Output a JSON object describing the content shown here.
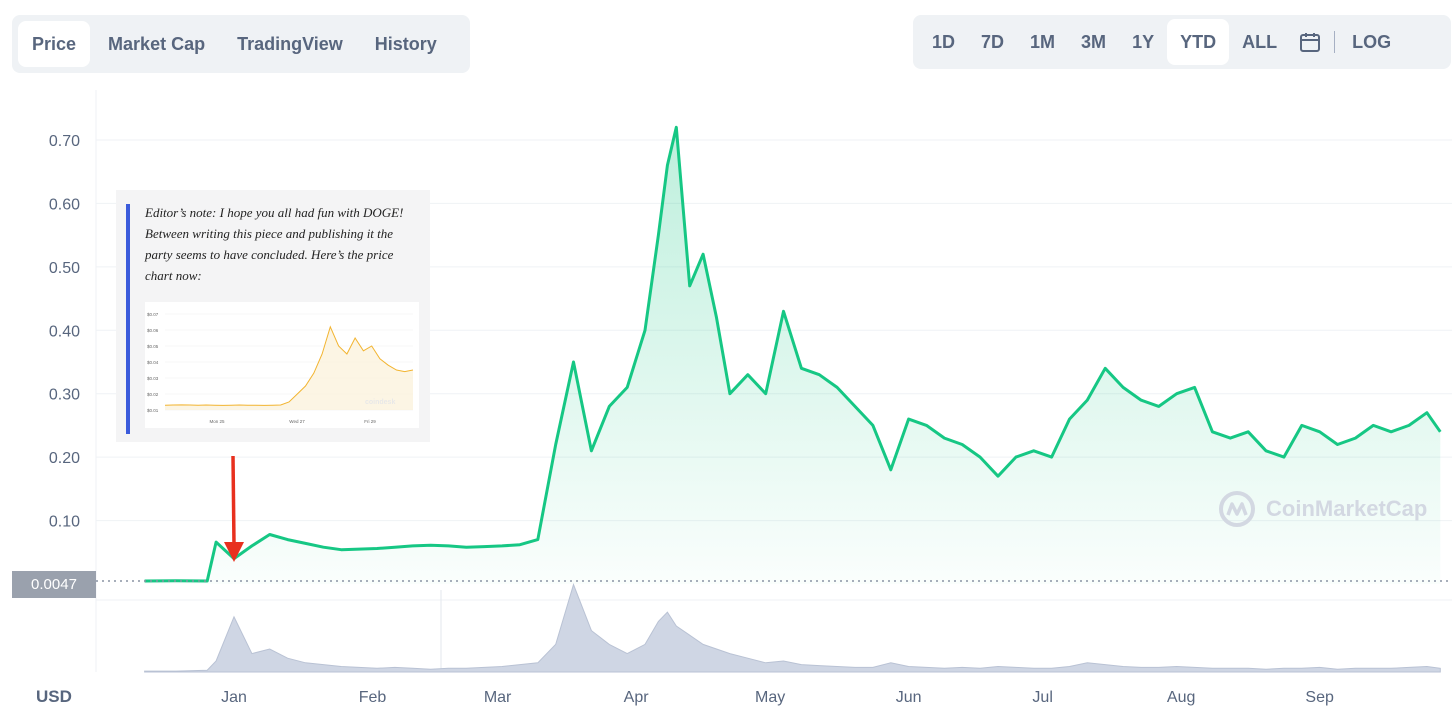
{
  "tabs": [
    {
      "label": "Price",
      "active": true
    },
    {
      "label": "Market Cap",
      "active": false
    },
    {
      "label": "TradingView",
      "active": false
    },
    {
      "label": "History",
      "active": false
    }
  ],
  "ranges": {
    "items": [
      {
        "label": "1D",
        "active": false
      },
      {
        "label": "7D",
        "active": false
      },
      {
        "label": "1M",
        "active": false
      },
      {
        "label": "3M",
        "active": false
      },
      {
        "label": "1Y",
        "active": false
      },
      {
        "label": "YTD",
        "active": true
      },
      {
        "label": "ALL",
        "active": false
      }
    ],
    "calendar_icon": "calendar-icon",
    "log_label": "LOG"
  },
  "note": {
    "text": "Editor’s note: I hope you all had fun with DOGE! Between writing this piece and publishing it the party seems to have concluded. Here’s the price chart now:",
    "inset": {
      "yticks": [
        "$0.07",
        "$0.06",
        "$0.05",
        "$0.04",
        "$0.03",
        "$0.02",
        "$0.01"
      ],
      "xticks": [
        "Mon 25",
        "Wed 27",
        "Fri 29"
      ],
      "watermark": "coindesk",
      "values": [
        0.013,
        0.0131,
        0.0132,
        0.0131,
        0.013,
        0.0131,
        0.013,
        0.0129,
        0.013,
        0.0131,
        0.013,
        0.013,
        0.0129,
        0.013,
        0.0131,
        0.015,
        0.02,
        0.025,
        0.033,
        0.045,
        0.062,
        0.05,
        0.045,
        0.055,
        0.047,
        0.05,
        0.042,
        0.038,
        0.035,
        0.034,
        0.035
      ]
    }
  },
  "price_badge": "0.0047",
  "watermark": "CoinMarketCap",
  "colors": {
    "line": "#16c784",
    "volume": "#cfd6e4",
    "grid": "#eff2f5",
    "arrow": "#e8301e",
    "inset_line": "#f2b430"
  },
  "chart_data": {
    "type": "line",
    "title": "",
    "xlabel": "",
    "ylabel": "USD",
    "yticks": [
      "0.70",
      "0.60",
      "0.50",
      "0.40",
      "0.30",
      "0.20",
      "0.10"
    ],
    "xticks": [
      "Jan",
      "Feb",
      "Mar",
      "Apr",
      "May",
      "Jun",
      "Jul",
      "Aug",
      "Sep"
    ],
    "ylim": [
      0,
      0.75
    ],
    "grid": true,
    "x": [
      "Dec 12",
      "Dec 19",
      "Dec 26",
      "Dec 28",
      "Jan 1",
      "Jan 5",
      "Jan 9",
      "Jan 13",
      "Jan 17",
      "Jan 21",
      "Jan 25",
      "Jan 29",
      "Feb 2",
      "Feb 6",
      "Feb 10",
      "Feb 14",
      "Feb 18",
      "Feb 22",
      "Feb 26",
      "Mar 2",
      "Mar 6",
      "Mar 10",
      "Mar 14",
      "Mar 18",
      "Mar 22",
      "Mar 26",
      "Mar 30",
      "Apr 3",
      "Apr 6",
      "Apr 8",
      "Apr 10",
      "Apr 13",
      "Apr 16",
      "Apr 19",
      "Apr 22",
      "Apr 26",
      "Apr 30",
      "May 4",
      "May 8",
      "May 12",
      "May 16",
      "May 20",
      "May 24",
      "May 28",
      "Jun 1",
      "Jun 5",
      "Jun 9",
      "Jun 13",
      "Jun 17",
      "Jun 21",
      "Jun 25",
      "Jun 29",
      "Jul 3",
      "Jul 7",
      "Jul 11",
      "Jul 15",
      "Jul 19",
      "Jul 23",
      "Jul 27",
      "Jul 31",
      "Aug 4",
      "Aug 8",
      "Aug 12",
      "Aug 16",
      "Aug 20",
      "Aug 24",
      "Aug 28",
      "Sep 1",
      "Sep 5",
      "Sep 9",
      "Sep 13",
      "Sep 17",
      "Sep 21",
      "Sep 25",
      "Sep 28"
    ],
    "series": [
      {
        "values": [
          0.0047,
          0.005,
          0.0048,
          0.066,
          0.04,
          0.06,
          0.078,
          0.07,
          0.064,
          0.058,
          0.054,
          0.055,
          0.056,
          0.058,
          0.06,
          0.061,
          0.06,
          0.058,
          0.059,
          0.06,
          0.062,
          0.07,
          0.22,
          0.35,
          0.21,
          0.28,
          0.31,
          0.4,
          0.55,
          0.66,
          0.72,
          0.47,
          0.52,
          0.42,
          0.3,
          0.33,
          0.3,
          0.43,
          0.34,
          0.33,
          0.31,
          0.28,
          0.25,
          0.18,
          0.26,
          0.25,
          0.23,
          0.22,
          0.2,
          0.17,
          0.2,
          0.21,
          0.2,
          0.26,
          0.29,
          0.34,
          0.31,
          0.29,
          0.28,
          0.3,
          0.31,
          0.24,
          0.23,
          0.24,
          0.21,
          0.2,
          0.25,
          0.24,
          0.22,
          0.23,
          0.25,
          0.24,
          0.25,
          0.27,
          0.24
        ]
      }
    ],
    "volume": [
      0.01,
      0.01,
      0.02,
      0.12,
      0.6,
      0.2,
      0.25,
      0.15,
      0.1,
      0.08,
      0.06,
      0.05,
      0.04,
      0.05,
      0.04,
      0.03,
      0.04,
      0.04,
      0.05,
      0.06,
      0.08,
      0.1,
      0.3,
      0.95,
      0.45,
      0.3,
      0.2,
      0.3,
      0.55,
      0.65,
      0.5,
      0.4,
      0.3,
      0.25,
      0.2,
      0.15,
      0.1,
      0.12,
      0.08,
      0.07,
      0.06,
      0.05,
      0.05,
      0.1,
      0.06,
      0.05,
      0.04,
      0.05,
      0.04,
      0.06,
      0.05,
      0.04,
      0.04,
      0.06,
      0.1,
      0.08,
      0.06,
      0.05,
      0.05,
      0.06,
      0.05,
      0.04,
      0.04,
      0.04,
      0.03,
      0.04,
      0.04,
      0.05,
      0.03,
      0.04,
      0.04,
      0.04,
      0.05,
      0.06,
      0.04
    ]
  }
}
